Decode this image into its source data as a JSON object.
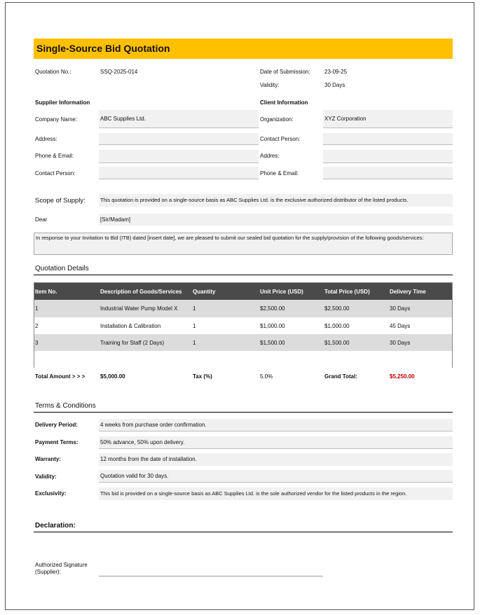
{
  "title": "Single-Source Bid Quotation",
  "header": {
    "quotation_no_label": "Quotation No.:",
    "quotation_no": "SSQ-2025-014",
    "date_label": "Date of Submission:",
    "date": "23-09-25",
    "validity_label": "Validity:",
    "validity": "30 Days"
  },
  "supplier": {
    "heading": "Supplier Information",
    "fields": [
      {
        "label": "Company Name:",
        "value": "ABC Supplies Ltd."
      },
      {
        "label": "Address:",
        "value": ""
      },
      {
        "label": "Phone & Email:",
        "value": ""
      },
      {
        "label": "Contact Person:",
        "value": ""
      }
    ]
  },
  "client": {
    "heading": "Client Information",
    "fields": [
      {
        "label": "Organization:",
        "value": "XYZ Corporation"
      },
      {
        "label": "Contact Person:",
        "value": ""
      },
      {
        "label": "Addres:",
        "value": ""
      },
      {
        "label": "Phone & Email:",
        "value": ""
      }
    ]
  },
  "scope": {
    "label": "Scope of Supply:",
    "value": "This quotation is provided on a single-source basis as ABC Supplies Ltd. is the exclusive authorized distributor of the listed products."
  },
  "dear": {
    "label": "Dear",
    "value": "[Sir/Madam]"
  },
  "intro": "In response to your Invitation to Bid (ITB) dated [insert date], we are pleased to submit our sealed bid quotation for the supply/provision of the following goods/services:",
  "quotation": {
    "heading": "Quotation Details",
    "columns": [
      "Item No.",
      "Description of Goods/Services",
      "Quantity",
      "Unit Price (USD)",
      "Total Price (USD)",
      "Delivery Time"
    ],
    "rows": [
      [
        "1",
        "Industrial Water Pump Model X",
        "1",
        "$2,500.00",
        "$2,500.00",
        "30 Days"
      ],
      [
        "2",
        "Installation & Calibration",
        "1",
        "$1,000.00",
        "$1,000.00",
        "45 Days"
      ],
      [
        "3",
        "Training for Staff (2 Days)",
        "1",
        "$1,500.00",
        "$1,500.00",
        "30 Days"
      ]
    ],
    "total_label": "Total Amount > > >",
    "total": "$5,000.00",
    "tax_label": "Tax (%)",
    "tax": "5.0%",
    "grand_label": "Grand Total:",
    "grand": "$5,250.00",
    "grand_color": "#c00000"
  },
  "terms": {
    "heading": "Terms & Conditions",
    "items": [
      {
        "label": "Delivery Period:",
        "value": "4 weeks from purchase order confirmation."
      },
      {
        "label": "Payment Terms:",
        "value": "50% advance, 50% upon delivery."
      },
      {
        "label": "Warranty:",
        "value": "12 months from the date of installation."
      },
      {
        "label": "Validity:",
        "value": "Quotation valid for 30 days."
      },
      {
        "label": "Exclusivity:",
        "value": "This bid is provided on a single-source basis as ABC Supplies Ltd. is the sole authorized vendor for the listed products in the region."
      }
    ]
  },
  "declaration": {
    "heading": "Declaration:",
    "signature_label_1": "Authorized Signature",
    "signature_label_2": "(Supplier):"
  }
}
